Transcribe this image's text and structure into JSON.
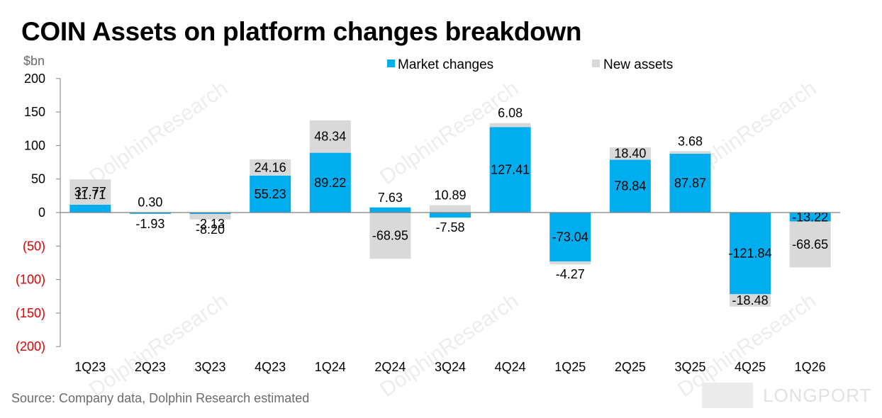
{
  "title": "COIN Assets on platform changes breakdown",
  "source": "Source: Company data, Dolphin Research estimated",
  "watermark": "DolphinResearch",
  "logo_text": "LONGPORT",
  "colors": {
    "market": "#00aeef",
    "new": "#d9d9d9",
    "negative_tick": "#e00000",
    "axis": "#7f7f7f"
  },
  "chart_data": {
    "type": "bar",
    "stacked": true,
    "ylabel": "$bn",
    "ylim": [
      -200,
      200
    ],
    "yticks": [
      {
        "value": 200,
        "label": "200"
      },
      {
        "value": 150,
        "label": "150"
      },
      {
        "value": 100,
        "label": "100"
      },
      {
        "value": 50,
        "label": "50"
      },
      {
        "value": 0,
        "label": "0"
      },
      {
        "value": -50,
        "label": "(50)"
      },
      {
        "value": -100,
        "label": "(100)"
      },
      {
        "value": -150,
        "label": "(150)"
      },
      {
        "value": -200,
        "label": "(200)"
      }
    ],
    "legend_position": "top",
    "categories": [
      "1Q23",
      "2Q23",
      "3Q23",
      "4Q23",
      "1Q24",
      "2Q24",
      "3Q24",
      "4Q24",
      "1Q25",
      "2Q25",
      "3Q25",
      "4Q25",
      "1Q26"
    ],
    "series": [
      {
        "name": "Market changes",
        "values": [
          11.71,
          -1.93,
          -2.13,
          55.23,
          89.22,
          7.63,
          -7.58,
          127.41,
          -73.04,
          78.84,
          87.87,
          -121.84,
          -13.22
        ]
      },
      {
        "name": "New assets",
        "values": [
          37.77,
          0.3,
          -8.2,
          24.16,
          48.34,
          -68.95,
          10.89,
          6.08,
          -4.27,
          18.4,
          3.68,
          -18.48,
          -68.65
        ]
      }
    ]
  }
}
